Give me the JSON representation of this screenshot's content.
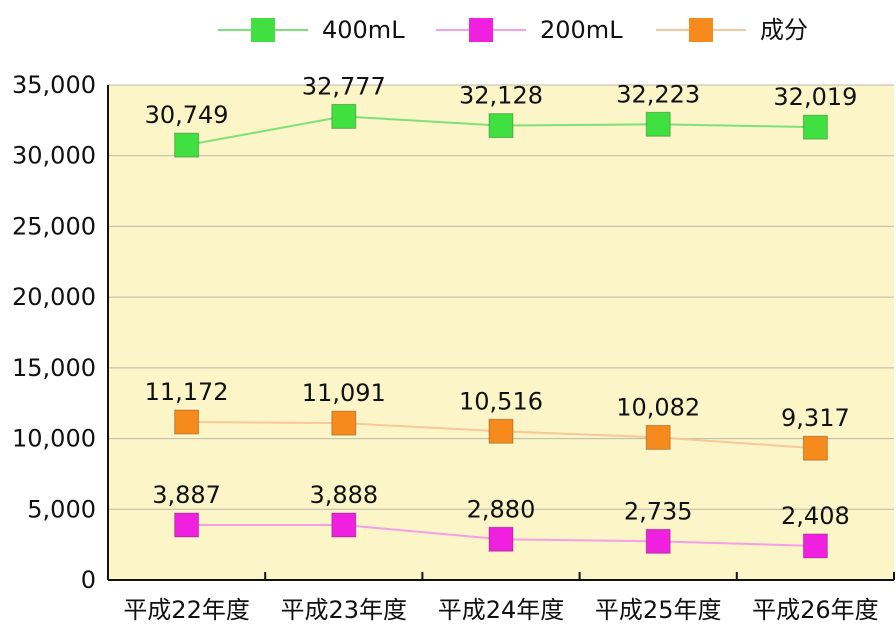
{
  "chart_data": {
    "type": "line",
    "title": "",
    "xlabel": "",
    "ylabel": "",
    "categories": [
      "平成22年度",
      "平成23年度",
      "平成24年度",
      "平成25年度",
      "平成26年度"
    ],
    "ylim": [
      0,
      35000
    ],
    "yticks": [
      0,
      5000,
      10000,
      15000,
      20000,
      25000,
      30000,
      35000
    ],
    "ytick_labels": [
      "0",
      "5,000",
      "10,000",
      "15,000",
      "20,000",
      "25,000",
      "30,000",
      "35,000"
    ],
    "grid": true,
    "legend_position": "top",
    "plot_background": "#fbf5c8",
    "series": [
      {
        "name": "400mL",
        "values": [
          30749,
          32777,
          32128,
          32223,
          32019
        ],
        "labels": [
          "30,749",
          "32,777",
          "32,128",
          "32,223",
          "32,019"
        ],
        "line_color": "#7fe07a",
        "marker_color": "#3fe03f"
      },
      {
        "name": "200mL",
        "values": [
          3887,
          3888,
          2880,
          2735,
          2408
        ],
        "labels": [
          "3,887",
          "3,888",
          "2,880",
          "2,735",
          "2,408"
        ],
        "line_color": "#f5a0e6",
        "marker_color": "#f020e0"
      },
      {
        "name": "成分",
        "values": [
          11172,
          11091,
          10516,
          10082,
          9317
        ],
        "labels": [
          "11,172",
          "11,091",
          "10,516",
          "10,082",
          "9,317"
        ],
        "line_color": "#f7c89a",
        "marker_color": "#f78a1c"
      }
    ]
  }
}
